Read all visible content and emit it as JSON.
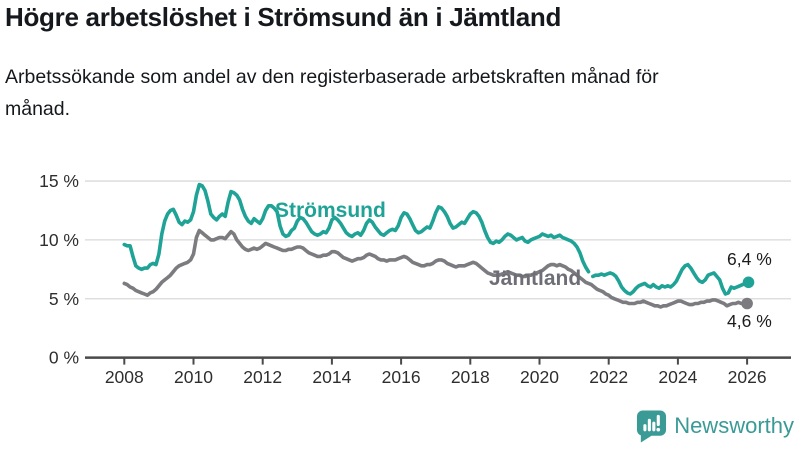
{
  "header": {
    "title": "Högre arbetslöshet i Strömsund än i Jämtland",
    "subtitle": "Arbetssökande som andel av den registerbaserade arbetskraften månad för månad."
  },
  "footer": {
    "brand": "Newsworthy",
    "brand_color": "#3a9a96"
  },
  "chart_data": {
    "type": "line",
    "title": "Högre arbetslöshet i Strömsund än i Jämtland",
    "unit": "%",
    "grid": "horizontal",
    "legend_position": "inline-labels",
    "x_axis": {
      "ticks": [
        2008,
        2010,
        2012,
        2014,
        2016,
        2018,
        2020,
        2022,
        2024,
        2026
      ],
      "range": [
        2007.9,
        2027.2
      ]
    },
    "y_axis": {
      "range": [
        0,
        16
      ],
      "ticks": [
        {
          "value": 0,
          "label": "0 %"
        },
        {
          "value": 5,
          "label": "5 %"
        },
        {
          "value": 10,
          "label": "10 %"
        },
        {
          "value": 15,
          "label": "15 %"
        }
      ]
    },
    "series": [
      {
        "name": "Strömsund",
        "color": "#1fa396",
        "label_color": "#1fa396",
        "end_label": "6,4 %",
        "end_value": 6.4,
        "segments": [
          {
            "start": 2008.0,
            "step_months": 1,
            "values": [
              9.6,
              9.5,
              9.5,
              8.6,
              7.8,
              7.6,
              7.5,
              7.6,
              7.6,
              7.9,
              8.0,
              7.9,
              8.8,
              10.5,
              11.6,
              12.2,
              12.5,
              12.6,
              12.1,
              11.5,
              11.3,
              11.6,
              11.5,
              11.7,
              12.4,
              13.8,
              14.7,
              14.6,
              14.2,
              13.3,
              12.2,
              11.9,
              11.7,
              12.0,
              12.2,
              12.0,
              13.2,
              14.1,
              14.0,
              13.8,
              13.4,
              12.6,
              12.0,
              11.6,
              11.4,
              11.8,
              11.6,
              11.4,
              11.8,
              12.5,
              12.9,
              12.9,
              12.7,
              12.4,
              11.2,
              10.5,
              10.3,
              10.4,
              10.8,
              11.0,
              11.6,
              11.9,
              11.8,
              11.5,
              11.1,
              10.7,
              10.5,
              10.4,
              10.5,
              10.7,
              10.6,
              11.0,
              11.7,
              11.9,
              11.7,
              11.4,
              11.0,
              10.6,
              10.4,
              10.3,
              10.5,
              10.6,
              10.4,
              10.8,
              11.4,
              11.7,
              11.5,
              11.1,
              10.8,
              10.5,
              10.4,
              10.6,
              10.8,
              10.9,
              10.8,
              11.2,
              11.9,
              12.3,
              12.2,
              11.8,
              11.3,
              10.8,
              10.6,
              10.7,
              10.9,
              11.1,
              11.0,
              11.6,
              12.3,
              12.8,
              12.7,
              12.4,
              12.0,
              11.4,
              11.0,
              11.1,
              11.3,
              11.5,
              11.4,
              11.8,
              12.2,
              12.4,
              12.3,
              12.0,
              11.5,
              10.8,
              10.2,
              9.8,
              9.7,
              9.9,
              9.8,
              10.0,
              10.3,
              10.5,
              10.4,
              10.2,
              10.0,
              10.1,
              10.2,
              9.9,
              9.8,
              10.0,
              10.1,
              10.2,
              10.3,
              10.5,
              10.4,
              10.3,
              10.4,
              10.2,
              10.3,
              10.4,
              10.2,
              10.1,
              10.0,
              9.9,
              9.7,
              9.4,
              8.9,
              8.2,
              7.7,
              7.3
            ]
          },
          {
            "start": 2021.54,
            "step_months": 1,
            "values": [
              6.9,
              7.0,
              7.0,
              7.1,
              7.0,
              7.1,
              7.2,
              7.1,
              6.9,
              6.5,
              6.0,
              5.7,
              5.5,
              5.4,
              5.6,
              5.9,
              6.1,
              6.2,
              6.3,
              6.1,
              6.0,
              6.2,
              6.0,
              5.9,
              6.1,
              6.0,
              6.1,
              6.0,
              6.2,
              6.5,
              7.0,
              7.5,
              7.8,
              7.9,
              7.6,
              7.2,
              6.8,
              6.5,
              6.4,
              6.6,
              7.0,
              7.1,
              7.2,
              6.9,
              6.6,
              5.9,
              5.4,
              5.5,
              6.0,
              5.9,
              6.0,
              6.1,
              6.2,
              6.3,
              6.4
            ]
          }
        ]
      },
      {
        "name": "Jämtland",
        "color": "#7b7b80",
        "label_color": "#6e6e76",
        "end_label": "4,6 %",
        "end_value": 4.6,
        "segments": [
          {
            "start": 2008.0,
            "step_months": 1,
            "values": [
              6.3,
              6.2,
              6.0,
              5.9,
              5.7,
              5.6,
              5.5,
              5.4,
              5.3,
              5.5,
              5.6,
              5.8,
              6.1,
              6.4,
              6.6,
              6.8,
              7.0,
              7.3,
              7.6,
              7.8,
              7.9,
              8.0,
              8.1,
              8.3,
              8.8,
              10.2,
              10.8,
              10.6,
              10.4,
              10.2,
              10.0,
              10.0,
              10.1,
              10.2,
              10.2,
              10.1,
              10.4,
              10.7,
              10.5,
              10.0,
              9.7,
              9.4,
              9.2,
              9.1,
              9.2,
              9.3,
              9.2,
              9.3,
              9.5,
              9.7,
              9.6,
              9.5,
              9.4,
              9.3,
              9.2,
              9.1,
              9.1,
              9.2,
              9.2,
              9.3,
              9.4,
              9.4,
              9.3,
              9.1,
              8.9,
              8.8,
              8.7,
              8.6,
              8.6,
              8.7,
              8.7,
              8.8,
              9.0,
              9.0,
              8.9,
              8.7,
              8.5,
              8.4,
              8.3,
              8.2,
              8.3,
              8.4,
              8.4,
              8.5,
              8.7,
              8.8,
              8.7,
              8.6,
              8.4,
              8.3,
              8.3,
              8.2,
              8.3,
              8.3,
              8.3,
              8.4,
              8.5,
              8.6,
              8.5,
              8.3,
              8.1,
              8.0,
              7.9,
              7.8,
              7.8,
              7.9,
              7.9,
              8.0,
              8.2,
              8.3,
              8.3,
              8.2,
              8.0,
              7.9,
              7.8,
              7.7,
              7.8,
              7.8,
              7.8,
              7.9,
              8.0,
              8.1,
              8.0,
              7.8,
              7.6,
              7.4,
              7.2,
              7.1,
              7.0,
              7.0,
              7.0,
              7.1,
              7.2,
              7.3,
              7.2,
              7.1,
              7.0,
              7.0,
              6.9,
              6.9,
              7.0,
              7.0,
              7.1,
              7.2,
              7.3,
              7.4,
              7.6,
              7.8,
              7.9,
              7.9,
              7.8,
              7.9,
              7.8,
              7.7,
              7.5,
              7.4,
              7.2,
              7.0,
              6.8,
              6.6,
              6.4,
              6.3,
              6.2,
              6.0,
              5.8,
              5.7,
              5.6,
              5.4,
              5.3,
              5.1,
              5.0,
              4.9,
              4.8,
              4.7,
              4.7,
              4.6,
              4.6,
              4.6,
              4.7,
              4.7,
              4.8,
              4.7,
              4.6,
              4.5,
              4.4,
              4.4,
              4.3,
              4.4,
              4.4,
              4.5,
              4.6,
              4.7,
              4.8,
              4.8,
              4.7,
              4.6,
              4.5,
              4.5,
              4.6,
              4.6,
              4.7,
              4.7,
              4.8,
              4.8,
              4.9,
              4.9,
              4.8,
              4.7,
              4.6,
              4.4,
              4.5,
              4.6,
              4.6,
              4.7,
              4.6,
              4.6,
              4.6
            ]
          }
        ]
      }
    ]
  }
}
